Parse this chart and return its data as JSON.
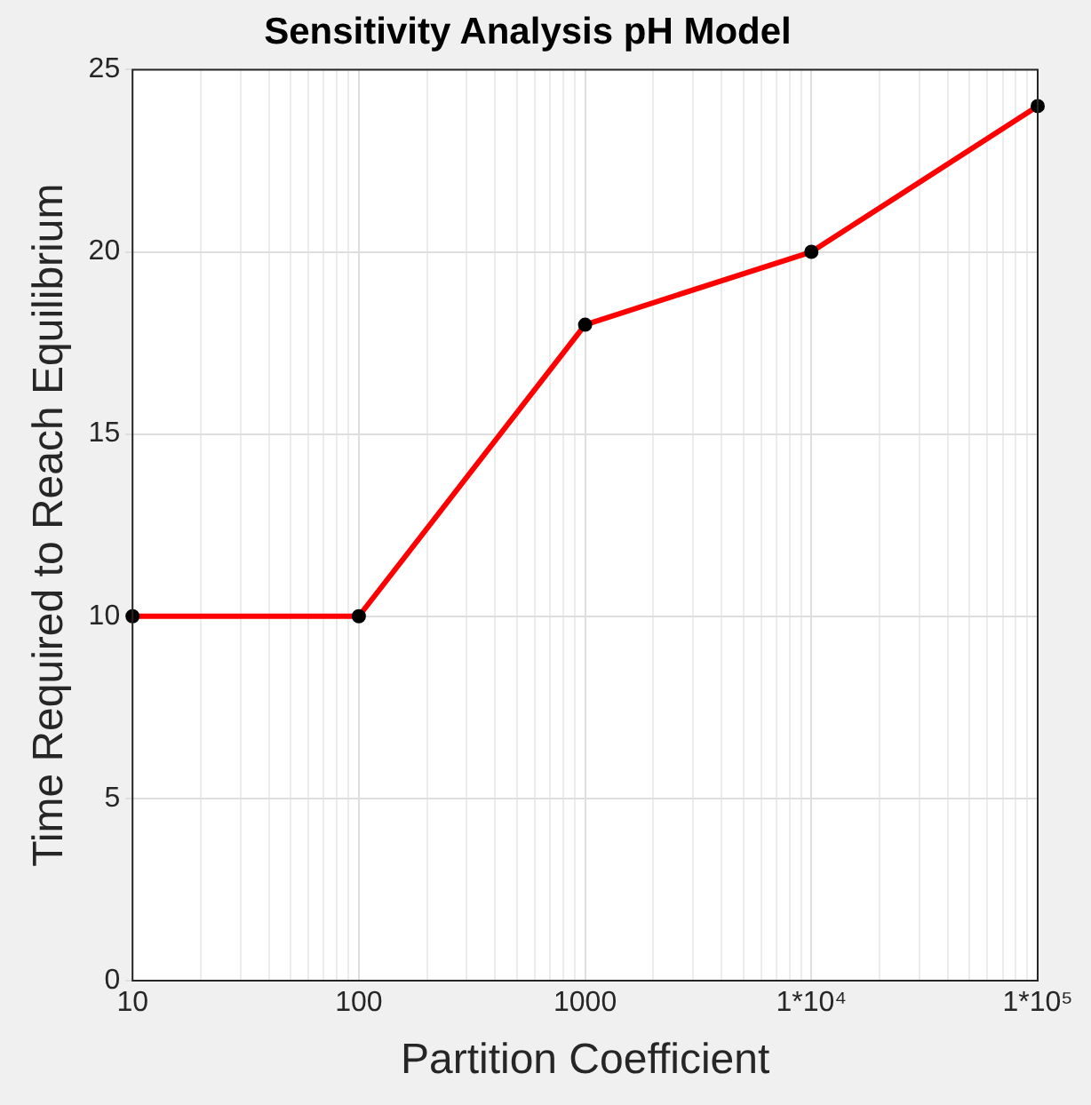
{
  "chart_data": {
    "type": "line",
    "title": "Sensitivity Analysis pH Model",
    "xlabel": "Partition Coefficient",
    "ylabel": "Time Required to Reach Equilibrium",
    "x": [
      10,
      100,
      1000,
      10000,
      100000
    ],
    "series": [
      {
        "color": "#ff0000",
        "values": [
          10,
          10,
          18,
          20,
          24
        ]
      }
    ],
    "log": "x",
    "xlim": [
      10,
      100000
    ],
    "xticks": [
      10,
      {
        "value": 20,
        "label": null
      },
      {
        "value": 30,
        "label": null
      },
      {
        "value": 40,
        "label": null
      },
      {
        "value": 50,
        "label": null
      },
      {
        "value": 60,
        "label": null
      },
      {
        "value": 70,
        "label": null
      },
      {
        "value": 80,
        "label": null
      },
      {
        "value": 90,
        "label": null
      },
      100,
      {
        "value": 200,
        "label": null
      },
      {
        "value": 300,
        "label": null
      },
      {
        "value": 400,
        "label": null
      },
      {
        "value": 500,
        "label": null
      },
      {
        "value": 600,
        "label": null
      },
      {
        "value": 700,
        "label": null
      },
      {
        "value": 800,
        "label": null
      },
      {
        "value": 900,
        "label": null
      },
      1000,
      {
        "value": 2000,
        "label": null
      },
      {
        "value": 3000,
        "label": null
      },
      {
        "value": 4000,
        "label": null
      },
      {
        "value": 5000,
        "label": null
      },
      {
        "value": 6000,
        "label": null
      },
      {
        "value": 7000,
        "label": null
      },
      {
        "value": 8000,
        "label": null
      },
      {
        "value": 9000,
        "label": null
      },
      {
        "value": 10000,
        "label": "1*10⁴"
      },
      {
        "value": 20000,
        "label": null
      },
      {
        "value": 30000,
        "label": null
      },
      {
        "value": 40000,
        "label": null
      },
      {
        "value": 50000,
        "label": null
      },
      {
        "value": 60000,
        "label": null
      },
      {
        "value": 70000,
        "label": null
      },
      {
        "value": 80000,
        "label": null
      },
      {
        "value": 90000,
        "label": null
      },
      {
        "value": 100000,
        "label": "1*10⁵"
      }
    ],
    "ylim": [
      0,
      25
    ],
    "yticks": [
      0,
      5,
      10,
      15,
      20,
      25
    ],
    "grid": true,
    "marker": "circle",
    "line_style": "solid",
    "legend": false
  }
}
